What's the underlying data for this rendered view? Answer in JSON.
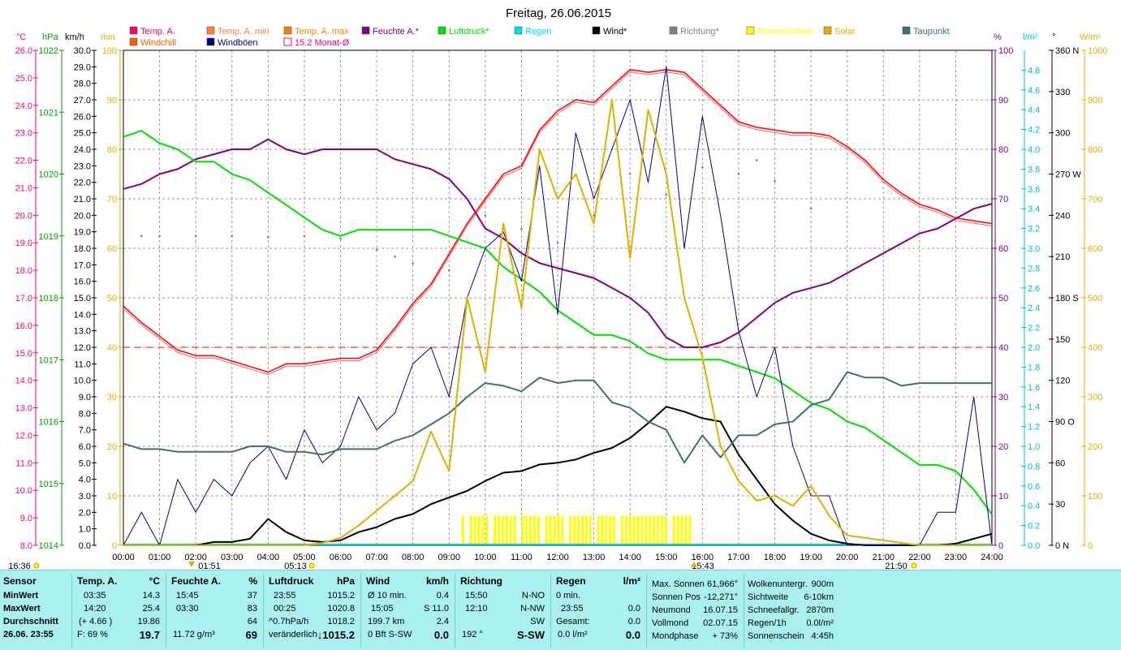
{
  "title": "Freitag, 26.06.2015",
  "colors": {
    "temp": "#ff0000",
    "windchill": "#ff6060",
    "feuchte": "#800080",
    "luftdruck": "#00e000",
    "regen": "#00d0d0",
    "wind": "#000000",
    "richtung": "#808080",
    "sonnenschein": "#ffff00",
    "solar": "#e0b000",
    "taupunkt": "#407070",
    "windboeen": "#000080",
    "monat": "#ff0000"
  },
  "legend": [
    {
      "label": "Temp. A.",
      "color": "#ff0070",
      "box": "filled"
    },
    {
      "label": "Temp. A. min",
      "color": "#ff8040",
      "box": "filled"
    },
    {
      "label": "Temp. A. max",
      "color": "#ff8000",
      "box": "filled"
    },
    {
      "label": "Feuchte A.*",
      "color": "#800080",
      "box": "filled"
    },
    {
      "label": "Luftdruck*",
      "color": "#00e000",
      "box": "filled"
    },
    {
      "label": "Regen",
      "color": "#00e0e0",
      "box": "filled"
    },
    {
      "label": "Wind*",
      "color": "#000000",
      "box": "filled"
    },
    {
      "label": "Richtung*",
      "color": "#808080",
      "box": "filled"
    },
    {
      "label": "Sonnenschein",
      "color": "#ffff00",
      "box": "filled"
    },
    {
      "label": "Solar",
      "color": "#e0b000",
      "box": "filled"
    },
    {
      "label": "Taupunkt",
      "color": "#407070",
      "box": "filled"
    },
    {
      "label": "Windchill",
      "color": "#ff6000",
      "box": "filled"
    },
    {
      "label": "Windböen",
      "color": "#000080",
      "box": "filled"
    },
    {
      "label": "15.2 Monat-Ø",
      "color": "#ff0070",
      "box": "outline"
    }
  ],
  "axis_units": {
    "temp": "°C",
    "hpa": "hPa",
    "kmh": "km/h",
    "min": "min",
    "pct": "%",
    "lm2": "l/m²",
    "deg": "°",
    "wm2": "W/m²"
  },
  "axes": {
    "temp": [
      "26.0",
      "25.0",
      "24.0",
      "23.0",
      "22.0",
      "21.0",
      "20.0",
      "19.0",
      "18.0",
      "17.0",
      "16.0",
      "15.0",
      "14.0",
      "13.0",
      "12.0",
      "11.0",
      "10.0",
      "9.0",
      "8.0"
    ],
    "hpa": [
      "1022",
      "1021",
      "1020",
      "1019",
      "1018",
      "1017",
      "1016",
      "1015",
      "1014"
    ],
    "kmh": [
      "30.0",
      "29.0",
      "28.0",
      "27.0",
      "26.0",
      "25.0",
      "24.0",
      "23.0",
      "22.0",
      "21.0",
      "20.0",
      "19.0",
      "18.0",
      "17.0",
      "16.0",
      "15.0",
      "14.0",
      "13.0",
      "12.0",
      "11.0",
      "10.0",
      "9.0",
      "8.0",
      "7.0",
      "6.0",
      "5.0",
      "4.0",
      "3.0",
      "2.0",
      "1.0",
      "0.0"
    ],
    "min": [
      "100",
      "90",
      "80",
      "70",
      "60",
      "50",
      "40",
      "30",
      "20",
      "10",
      "0"
    ],
    "pct": [
      "100",
      "90",
      "80",
      "70",
      "60",
      "50",
      "40",
      "30",
      "20",
      "10",
      "0"
    ],
    "lm2": [
      "4.8",
      "4.6",
      "4.4",
      "4.2",
      "4.0",
      "3.8",
      "3.6",
      "3.4",
      "3.2",
      "3.0",
      "2.8",
      "2.6",
      "2.4",
      "2.2",
      "2.0",
      "1.8",
      "1.6",
      "1.4",
      "1.2",
      "1.0",
      "0.8",
      "0.6",
      "0.4",
      "0.2",
      "0.0"
    ],
    "deg": [
      "360 N",
      "330",
      "300",
      "270 W",
      "240",
      "210",
      "180 S",
      "150",
      "120",
      "90  O",
      "60",
      "30",
      "0   N"
    ],
    "wm2": [
      "1000",
      "900",
      "800",
      "700",
      "600",
      "500",
      "400",
      "300",
      "200",
      "100",
      "0"
    ],
    "x": [
      "00:00",
      "01:00",
      "02:00",
      "03:00",
      "04:00",
      "05:00",
      "06:00",
      "07:00",
      "08:00",
      "09:00",
      "10:00",
      "11:00",
      "12:00",
      "13:00",
      "14:00",
      "15:00",
      "16:00",
      "17:00",
      "18:00",
      "19:00",
      "20:00",
      "21:00",
      "22:00",
      "23:00",
      "24:00"
    ]
  },
  "sun_markers": {
    "daylen": "16:36",
    "dawn": "01:51",
    "sunrise": "05:13",
    "noon": "15:43",
    "sunset": "21:50"
  },
  "chart_data": {
    "type": "line",
    "title": "Freitag, 26.06.2015",
    "x_range_hours": [
      0,
      24
    ],
    "monat_avg_temp": 15.2,
    "series": [
      {
        "name": "Temp. A.",
        "unit": "°C",
        "x": [
          0,
          0.5,
          1,
          1.5,
          2,
          2.5,
          3,
          3.5,
          4,
          4.5,
          5,
          5.5,
          6,
          6.5,
          7,
          7.5,
          8,
          8.5,
          9,
          9.5,
          10,
          10.5,
          11,
          11.5,
          12,
          12.5,
          13,
          13.5,
          14,
          14.5,
          15,
          15.5,
          16,
          16.5,
          17,
          17.5,
          18,
          18.5,
          19,
          19.5,
          20,
          20.5,
          21,
          21.5,
          22,
          22.5,
          23,
          23.5,
          24
        ],
        "y": [
          16.7,
          16.1,
          15.6,
          15.1,
          14.9,
          14.9,
          14.7,
          14.5,
          14.3,
          14.6,
          14.6,
          14.7,
          14.8,
          14.8,
          15.1,
          15.9,
          16.8,
          17.5,
          18.6,
          19.7,
          20.6,
          21.5,
          21.8,
          23.1,
          23.8,
          24.2,
          24.1,
          24.7,
          25.3,
          25.2,
          25.3,
          25.2,
          24.6,
          24.0,
          23.4,
          23.2,
          23.1,
          23.0,
          23.0,
          22.9,
          22.5,
          22.0,
          21.3,
          20.8,
          20.4,
          20.2,
          19.9,
          19.8,
          19.7
        ]
      },
      {
        "name": "Feuchte A.*",
        "unit": "%",
        "x": [
          0,
          0.5,
          1,
          1.5,
          2,
          2.5,
          3,
          3.5,
          4,
          4.5,
          5,
          5.5,
          6,
          6.5,
          7,
          7.5,
          8,
          8.5,
          9,
          9.5,
          10,
          10.5,
          11,
          11.5,
          12,
          12.5,
          13,
          13.5,
          14,
          14.5,
          15,
          15.5,
          16,
          16.5,
          17,
          17.5,
          18,
          18.5,
          19,
          19.5,
          20,
          20.5,
          21,
          21.5,
          22,
          22.5,
          23,
          23.5,
          24
        ],
        "y": [
          72,
          73,
          75,
          76,
          78,
          79,
          80,
          80,
          82,
          80,
          79,
          80,
          80,
          80,
          80,
          78,
          77,
          76,
          74,
          70,
          64,
          62,
          59,
          57,
          56,
          55,
          54,
          52,
          50,
          47,
          42,
          40,
          40,
          41,
          43,
          46,
          49,
          51,
          52,
          53,
          55,
          57,
          59,
          61,
          63,
          64,
          66,
          68,
          69
        ]
      },
      {
        "name": "Luftdruck*",
        "unit": "hPa",
        "x": [
          0,
          0.5,
          1,
          1.5,
          2,
          2.5,
          3,
          3.5,
          4,
          4.5,
          5,
          5.5,
          6,
          6.5,
          7,
          7.5,
          8,
          8.5,
          9,
          9.5,
          10,
          10.5,
          11,
          11.5,
          12,
          12.5,
          13,
          13.5,
          14,
          14.5,
          15,
          15.5,
          16,
          16.5,
          17,
          17.5,
          18,
          18.5,
          19,
          19.5,
          20,
          20.5,
          21,
          21.5,
          22,
          22.5,
          23,
          23.5,
          24
        ],
        "y": [
          1020.6,
          1020.7,
          1020.5,
          1020.4,
          1020.2,
          1020.2,
          1020.0,
          1019.9,
          1019.7,
          1019.5,
          1019.3,
          1019.1,
          1019.0,
          1019.1,
          1019.1,
          1019.1,
          1019.1,
          1019.1,
          1019.0,
          1018.9,
          1018.8,
          1018.5,
          1018.3,
          1018.1,
          1017.8,
          1017.6,
          1017.4,
          1017.4,
          1017.3,
          1017.1,
          1017.0,
          1017.0,
          1017.0,
          1017.0,
          1016.9,
          1016.8,
          1016.7,
          1016.5,
          1016.3,
          1016.2,
          1016.0,
          1015.9,
          1015.7,
          1015.5,
          1015.3,
          1015.3,
          1015.2,
          1014.9,
          1014.5
        ]
      },
      {
        "name": "Wind*",
        "unit": "km/h",
        "x": [
          0,
          0.5,
          1,
          1.5,
          2,
          2.5,
          3,
          3.5,
          4,
          4.5,
          5,
          5.5,
          6,
          6.5,
          7,
          7.5,
          8,
          8.5,
          9,
          9.5,
          10,
          10.5,
          11,
          11.5,
          12,
          12.5,
          13,
          13.5,
          14,
          14.5,
          15,
          15.5,
          16,
          16.5,
          17,
          17.5,
          18,
          18.5,
          19,
          19.5,
          20,
          20.5,
          21,
          21.5,
          22,
          22.5,
          23,
          23.5,
          24
        ],
        "y": [
          0,
          0,
          0,
          0,
          0,
          0.2,
          0.2,
          0.4,
          1.6,
          0.8,
          0.3,
          0.2,
          0.3,
          0.8,
          1.1,
          1.6,
          1.9,
          2.5,
          2.9,
          3.3,
          3.9,
          4.4,
          4.5,
          4.9,
          5.0,
          5.2,
          5.6,
          5.9,
          6.5,
          7.4,
          8.4,
          8.1,
          7.7,
          7.5,
          5.5,
          4.0,
          2.5,
          1.5,
          0.7,
          0.3,
          0.1,
          0,
          0,
          0,
          0,
          0,
          0.1,
          0.4,
          0.7
        ]
      },
      {
        "name": "Windböen",
        "unit": "km/h",
        "x": [
          0,
          0.5,
          1,
          1.5,
          2,
          2.5,
          3,
          3.5,
          4,
          4.5,
          5,
          5.5,
          6,
          6.5,
          7,
          7.5,
          8,
          8.5,
          9,
          9.5,
          10,
          10.5,
          11,
          11.5,
          12,
          12.5,
          13,
          13.5,
          14,
          14.5,
          15,
          15.5,
          16,
          16.5,
          17,
          17.5,
          18,
          18.5,
          19,
          19.5,
          20,
          20.5,
          21,
          21.5,
          22,
          22.5,
          23,
          23.5,
          24
        ],
        "y": [
          0,
          2.0,
          0,
          4.0,
          2.0,
          4.0,
          3.0,
          5.0,
          6.0,
          4.0,
          7.0,
          5.0,
          6.0,
          9.0,
          7.0,
          8.0,
          11.0,
          12.0,
          9.0,
          15.0,
          18.0,
          19.0,
          16.0,
          23.0,
          14.0,
          25.0,
          21.0,
          24.0,
          27.0,
          22.0,
          29.0,
          18.0,
          26.0,
          20.0,
          13.0,
          9.0,
          12.0,
          6.0,
          3.0,
          3.0,
          0,
          0,
          0,
          0,
          0,
          2.0,
          2.0,
          9.0,
          0
        ]
      },
      {
        "name": "Taupunkt",
        "unit": "°C",
        "x": [
          0,
          0.5,
          1,
          1.5,
          2,
          2.5,
          3,
          3.5,
          4,
          4.5,
          5,
          5.5,
          6,
          6.5,
          7,
          7.5,
          8,
          8.5,
          9,
          9.5,
          10,
          10.5,
          11,
          11.5,
          12,
          12.5,
          13,
          13.5,
          14,
          14.5,
          15,
          15.5,
          16,
          16.5,
          17,
          17.5,
          18,
          18.5,
          19,
          19.5,
          20,
          20.5,
          21,
          21.5,
          22,
          22.5,
          23,
          23.5,
          24
        ],
        "y": [
          11.7,
          11.5,
          11.5,
          11.4,
          11.4,
          11.4,
          11.4,
          11.6,
          11.6,
          11.4,
          11.4,
          11.3,
          11.5,
          11.5,
          11.5,
          11.8,
          12.0,
          12.4,
          12.8,
          13.4,
          13.9,
          13.8,
          13.6,
          14.1,
          13.9,
          14.0,
          14.0,
          13.2,
          13.0,
          12.5,
          12.2,
          11.0,
          12.0,
          11.2,
          12.0,
          12.0,
          12.4,
          12.5,
          13.1,
          13.3,
          14.3,
          14.1,
          14.1,
          13.8,
          13.9,
          13.9,
          13.9,
          13.9,
          13.9
        ]
      },
      {
        "name": "Solar",
        "unit": "W/m²",
        "x": [
          0,
          0.5,
          1,
          1.5,
          2,
          2.5,
          3,
          3.5,
          4,
          4.5,
          5,
          5.5,
          6,
          6.5,
          7,
          7.5,
          8,
          8.5,
          9,
          9.5,
          10,
          10.5,
          11,
          11.5,
          12,
          12.5,
          13,
          13.5,
          14,
          14.5,
          15,
          15.5,
          16,
          16.5,
          17,
          17.5,
          18,
          18.5,
          19,
          19.5,
          20,
          20.5,
          21,
          21.5,
          22,
          22.5,
          23,
          23.5,
          24
        ],
        "y": [
          0,
          0,
          0,
          0,
          0,
          0,
          0,
          0,
          0,
          0,
          0,
          5,
          15,
          40,
          70,
          100,
          130,
          230,
          150,
          500,
          350,
          650,
          480,
          800,
          700,
          750,
          650,
          900,
          580,
          880,
          750,
          500,
          380,
          200,
          130,
          90,
          100,
          80,
          120,
          60,
          20,
          15,
          10,
          5,
          0,
          0,
          0,
          0,
          0
        ]
      },
      {
        "name": "Richtung*",
        "unit": "°",
        "x": [
          0.5,
          1,
          2,
          3,
          4,
          5,
          6,
          7,
          7.5,
          8,
          9,
          10,
          11,
          12,
          13,
          14,
          15,
          16,
          17,
          17.5,
          18,
          19
        ],
        "y": [
          225,
          225,
          225,
          225,
          224,
          225,
          223,
          215,
          210,
          205,
          200,
          240,
          230,
          220,
          240,
          270,
          255,
          275,
          270,
          280,
          265,
          245
        ]
      }
    ]
  },
  "bottom_table": {
    "sensor": {
      "header": "Sensor",
      "rows": [
        "MinWert",
        "MaxWert",
        "Durchschnitt",
        "26.06.  23:55"
      ]
    },
    "temp": {
      "header": "Temp. A.",
      "unit": "°C",
      "rows": [
        [
          "03:35",
          "14.3"
        ],
        [
          "14:20",
          "25.4"
        ],
        [
          "(+ 4.66 )",
          "19.86"
        ],
        [
          "F: 69 %",
          "19.7"
        ]
      ]
    },
    "feuchte": {
      "header": "Feuchte A.",
      "unit": "%",
      "rows": [
        [
          "15:45",
          "37"
        ],
        [
          "03:30",
          "83"
        ],
        [
          "",
          "64"
        ],
        [
          "11.72 g/m³",
          "69"
        ]
      ]
    },
    "luftdruck": {
      "header": "Luftdruck",
      "unit": "hPa",
      "rows": [
        [
          "23:55",
          "1015.2"
        ],
        [
          "00:25",
          "1020.8"
        ],
        [
          "^0.7hPa/h",
          "1018.2"
        ],
        [
          "veränderlich",
          "↓1015.2"
        ]
      ]
    },
    "wind": {
      "header": "Wind",
      "unit": "km/h",
      "rows": [
        [
          "Ø 10 min.",
          "0.4"
        ],
        [
          "15:05",
          "S 11.0"
        ],
        [
          "199.7 km",
          "2.4"
        ],
        [
          "0 Bft S-SW",
          "0.0"
        ]
      ]
    },
    "richtung": {
      "header": "Richtung",
      "rows": [
        [
          "15:50",
          "N-NO"
        ],
        [
          "12:10",
          "N-NW"
        ],
        [
          "",
          "SW"
        ],
        [
          "192 °",
          "S-SW"
        ]
      ]
    },
    "regen": {
      "header": "Regen",
      "unit": "l/m²",
      "rows": [
        [
          "0 min.",
          ""
        ],
        [
          "23:55",
          "0.0"
        ],
        [
          "Gesamt:",
          "0.0"
        ],
        [
          "0.0 l/m²",
          "0.0"
        ]
      ]
    },
    "sonne": {
      "rows": [
        [
          "Max. Sonnen",
          "61,966°"
        ],
        [
          "Sonnen Pos",
          "-12,271°"
        ],
        [
          "Neumond",
          "16.07.15"
        ],
        [
          "Vollmond",
          "02.07.15"
        ],
        [
          "Mondphase",
          "+ 73%"
        ]
      ]
    },
    "wolken": {
      "rows": [
        [
          "Wolkenuntergr.",
          "900m"
        ],
        [
          "Sichtweite",
          "6-10km"
        ],
        [
          "Schneefallgr.",
          "2870m"
        ],
        [
          "Regen/1h",
          "0.0l/m²"
        ],
        [
          "Sonnenschein",
          "4:45h"
        ]
      ]
    }
  }
}
